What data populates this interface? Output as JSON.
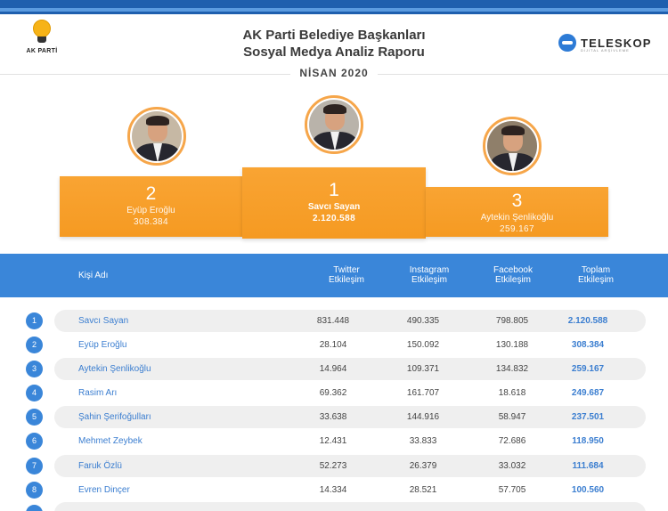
{
  "header": {
    "logo_text": "AK PARTİ",
    "title_line1": "AK Parti Belediye Başkanları",
    "title_line2": "Sosyal Medya Analiz Raporu",
    "brand_name": "TELESKOP",
    "brand_sub": "DİJİTAL ARŞİVLEME",
    "date": "NİSAN 2020"
  },
  "podium": [
    {
      "rank": "2",
      "name": "Eyüp Eroğlu",
      "value": "308.384"
    },
    {
      "rank": "1",
      "name": "Savcı Sayan",
      "value": "2.120.588"
    },
    {
      "rank": "3",
      "name": "Aytekin Şenlikoğlu",
      "value": "259.167"
    }
  ],
  "table": {
    "columns": {
      "name": "Kişi Adı",
      "twitter": [
        "Twitter",
        "Etkileşim"
      ],
      "instagram": [
        "Instagram",
        "Etkileşim"
      ],
      "facebook": [
        "Facebook",
        "Etkileşim"
      ],
      "total": [
        "Toplam",
        "Etkileşim"
      ]
    },
    "rows": [
      {
        "no": "1",
        "name": "Savcı Sayan",
        "twitter": "831.448",
        "instagram": "490.335",
        "facebook": "798.805",
        "total": "2.120.588"
      },
      {
        "no": "2",
        "name": "Eyüp Eroğlu",
        "twitter": "28.104",
        "instagram": "150.092",
        "facebook": "130.188",
        "total": "308.384"
      },
      {
        "no": "3",
        "name": "Aytekin Şenlikoğlu",
        "twitter": "14.964",
        "instagram": "109.371",
        "facebook": "134.832",
        "total": "259.167"
      },
      {
        "no": "4",
        "name": "Rasim Arı",
        "twitter": "69.362",
        "instagram": "161.707",
        "facebook": "18.618",
        "total": "249.687"
      },
      {
        "no": "5",
        "name": "Şahin Şerifoğulları",
        "twitter": "33.638",
        "instagram": "144.916",
        "facebook": "58.947",
        "total": "237.501"
      },
      {
        "no": "6",
        "name": "Mehmet Zeybek",
        "twitter": "12.431",
        "instagram": "33.833",
        "facebook": "72.686",
        "total": "118.950"
      },
      {
        "no": "7",
        "name": "Faruk Özlü",
        "twitter": "52.273",
        "instagram": "26.379",
        "facebook": "33.032",
        "total": "111.684"
      },
      {
        "no": "8",
        "name": "Evren Dinçer",
        "twitter": "14.334",
        "instagram": "28.521",
        "facebook": "57.705",
        "total": "100.560"
      }
    ]
  },
  "colors": {
    "accent_blue": "#3a86d9",
    "podium_orange": "#f7a02a"
  }
}
